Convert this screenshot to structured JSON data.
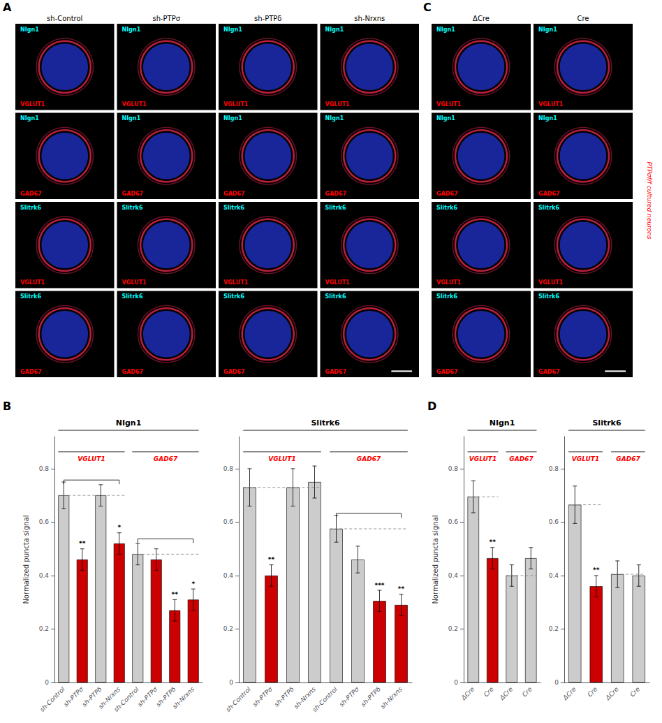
{
  "chart_data": [
    {
      "type": "image",
      "title": "A",
      "categories": [
        "sh-Control",
        "sh-PTPσ",
        "sh-PTPδ",
        "sh-Nrxns"
      ],
      "annotations": [
        [
          "NIgn1",
          "VGLUT1"
        ],
        [
          "NIgn1",
          "GAD67"
        ],
        [
          "Slitrk6",
          "VGLUT1"
        ],
        [
          "Slitrk6",
          "GAD67"
        ]
      ]
    },
    {
      "type": "image",
      "title": "C",
      "subtitle": "PTPσf/f cultured neurons",
      "categories": [
        "ΔCre",
        "Cre"
      ],
      "annotations": [
        [
          "NIgn1",
          "VGLUT1"
        ],
        [
          "NIgn1",
          "GAD67"
        ],
        [
          "Slitrk6",
          "VGLUT1"
        ],
        [
          "Slitrk6",
          "GAD67"
        ]
      ]
    },
    {
      "type": "bar",
      "title": "NIgn1",
      "annotations": [
        "B"
      ],
      "ylabel": "Normalized puncta signal",
      "ylim": [
        0,
        0.92
      ],
      "yticks": [
        0,
        0.2,
        0.4,
        0.6,
        0.8
      ],
      "grid": false,
      "series": [
        {
          "name": "VGLUT1",
          "categories": [
            "sh-Control",
            "sh-PTPσ",
            "sh-PTPδ",
            "sh-Nrxns"
          ],
          "values": [
            0.7,
            0.46,
            0.7,
            0.52
          ],
          "errors": [
            0.05,
            0.04,
            0.04,
            0.04
          ],
          "colors": [
            "#cccccc",
            "#cc0000",
            "#cccccc",
            "#cc0000"
          ],
          "stars": [
            null,
            "**",
            null,
            "*"
          ],
          "reference": 0.7,
          "bracket": [
            0,
            3
          ]
        },
        {
          "name": "GAD67",
          "categories": [
            "sh-Control",
            "sh-PTPσ",
            "sh-PTPδ",
            "sh-Nrxns"
          ],
          "values": [
            0.48,
            0.46,
            0.27,
            0.31
          ],
          "errors": [
            0.04,
            0.04,
            0.04,
            0.04
          ],
          "colors": [
            "#cccccc",
            "#cc0000",
            "#cc0000",
            "#cc0000"
          ],
          "stars": [
            null,
            null,
            "**",
            "*"
          ],
          "reference": 0.48,
          "bracket": [
            0,
            3
          ]
        }
      ]
    },
    {
      "type": "bar",
      "title": "Slitrk6",
      "ylim": [
        0,
        0.92
      ],
      "yticks": [
        0,
        0.2,
        0.4,
        0.6,
        0.8
      ],
      "grid": false,
      "series": [
        {
          "name": "VGLUT1",
          "categories": [
            "sh-Control",
            "sh-PTPσ",
            "sh-PTPδ",
            "sh-Nrxns"
          ],
          "values": [
            0.73,
            0.4,
            0.73,
            0.75
          ],
          "errors": [
            0.07,
            0.04,
            0.07,
            0.06
          ],
          "colors": [
            "#cccccc",
            "#cc0000",
            "#cccccc",
            "#cccccc"
          ],
          "stars": [
            null,
            "**",
            null,
            null
          ],
          "reference": 0.73
        },
        {
          "name": "GAD67",
          "categories": [
            "sh-Control",
            "sh-PTPσ",
            "sh-PTPδ",
            "sh-Nrxns"
          ],
          "values": [
            0.575,
            0.46,
            0.305,
            0.29
          ],
          "errors": [
            0.05,
            0.05,
            0.04,
            0.04
          ],
          "colors": [
            "#cccccc",
            "#cccccc",
            "#cc0000",
            "#cc0000"
          ],
          "stars": [
            null,
            null,
            "***",
            "**"
          ],
          "reference": 0.575,
          "bracket": [
            0,
            3
          ]
        }
      ]
    },
    {
      "type": "bar",
      "title": "NIgn1",
      "annotations": [
        "D"
      ],
      "ylabel": "Normalized puncta signal",
      "ylim": [
        0,
        0.92
      ],
      "yticks": [
        0,
        0.2,
        0.4,
        0.6,
        0.8
      ],
      "grid": false,
      "series": [
        {
          "name": "VGLUT1",
          "categories": [
            "ΔCre",
            "Cre"
          ],
          "values": [
            0.695,
            0.465
          ],
          "errors": [
            0.06,
            0.04
          ],
          "colors": [
            "#cccccc",
            "#cc0000"
          ],
          "stars": [
            null,
            "**"
          ],
          "reference": 0.695
        },
        {
          "name": "GAD67",
          "categories": [
            "ΔCre",
            "Cre"
          ],
          "values": [
            0.4,
            0.465
          ],
          "errors": [
            0.04,
            0.04
          ],
          "colors": [
            "#cccccc",
            "#cccccc"
          ],
          "stars": [
            null,
            null
          ],
          "reference": 0.4
        }
      ]
    },
    {
      "type": "bar",
      "title": "Slitrk6",
      "ylim": [
        0,
        0.92
      ],
      "yticks": [
        0,
        0.2,
        0.4,
        0.6,
        0.8
      ],
      "grid": false,
      "series": [
        {
          "name": "VGLUT1",
          "categories": [
            "ΔCre",
            "Cre"
          ],
          "values": [
            0.665,
            0.36
          ],
          "errors": [
            0.07,
            0.04
          ],
          "colors": [
            "#cccccc",
            "#cc0000"
          ],
          "stars": [
            null,
            "**"
          ],
          "reference": 0.665
        },
        {
          "name": "GAD67",
          "categories": [
            "ΔCre",
            "Cre"
          ],
          "values": [
            0.405,
            0.4
          ],
          "errors": [
            0.05,
            0.04
          ],
          "colors": [
            "#cccccc",
            "#cccccc"
          ],
          "stars": [
            null,
            null
          ],
          "reference": 0.405
        }
      ]
    }
  ]
}
